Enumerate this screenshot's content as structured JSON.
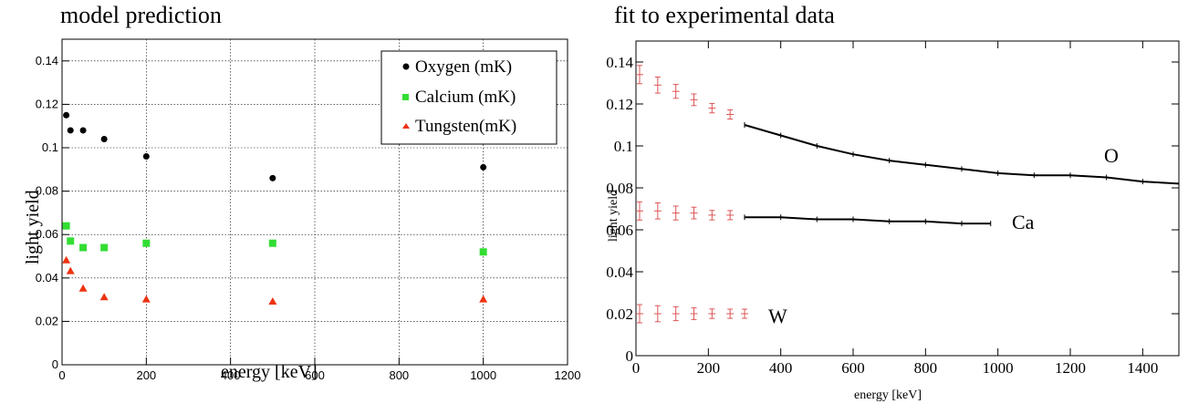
{
  "titles": {
    "left": "model prediction",
    "right": "fit to experimental data"
  },
  "chart_data": [
    {
      "type": "scatter",
      "title": "model prediction",
      "xlabel": "energy [keV]",
      "ylabel": "light yield",
      "xlim": [
        0,
        1200
      ],
      "ylim": [
        0,
        0.15
      ],
      "xticks": [
        0,
        200,
        400,
        600,
        800,
        1000,
        1200
      ],
      "yticks": [
        0,
        0.02,
        0.04,
        0.06,
        0.08,
        0.1,
        0.12,
        0.14
      ],
      "grid": true,
      "legend_position": "top-right",
      "series": [
        {
          "name": "Oxygen (mK)",
          "marker": "circle",
          "color": "#000000",
          "x": [
            10,
            20,
            50,
            100,
            200,
            500,
            1000
          ],
          "y": [
            0.115,
            0.108,
            0.108,
            0.104,
            0.096,
            0.086,
            0.091
          ]
        },
        {
          "name": "Calcium (mK)",
          "marker": "square",
          "color": "#33dd33",
          "x": [
            10,
            20,
            50,
            100,
            200,
            500,
            1000
          ],
          "y": [
            0.064,
            0.057,
            0.054,
            0.054,
            0.056,
            0.056,
            0.052
          ]
        },
        {
          "name": "Tungsten(mK)",
          "marker": "triangle",
          "color": "#ee3311",
          "x": [
            10,
            20,
            50,
            100,
            200,
            500,
            1000
          ],
          "y": [
            0.048,
            0.043,
            0.035,
            0.031,
            0.03,
            0.029,
            0.03
          ]
        }
      ]
    },
    {
      "type": "line",
      "title": "fit to experimental data",
      "xlabel": "energy [keV]",
      "ylabel": "light yield",
      "xlim": [
        0,
        1500
      ],
      "ylim": [
        0,
        0.15
      ],
      "xticks": [
        0,
        200,
        400,
        600,
        800,
        1000,
        1200,
        1400
      ],
      "yticks": [
        0,
        0.02,
        0.04,
        0.06,
        0.08,
        0.1,
        0.12,
        0.14
      ],
      "grid": false,
      "series": [
        {
          "name": "O",
          "style": "fit-band",
          "color": "#dd5555",
          "x": [
            0,
            50,
            100,
            150,
            200,
            250
          ],
          "y": [
            0.134,
            0.129,
            0.126,
            0.122,
            0.118,
            0.115
          ]
        },
        {
          "name": "O",
          "style": "data-line",
          "color": "#000000",
          "x": [
            300,
            400,
            500,
            600,
            700,
            800,
            900,
            1000,
            1100,
            1200,
            1300,
            1400,
            1500
          ],
          "y": [
            0.11,
            0.105,
            0.1,
            0.096,
            0.093,
            0.091,
            0.089,
            0.087,
            0.086,
            0.086,
            0.085,
            0.083,
            0.082
          ]
        },
        {
          "name": "Ca",
          "style": "fit-band",
          "color": "#dd5555",
          "x": [
            0,
            50,
            100,
            150,
            200,
            250
          ],
          "y": [
            0.069,
            0.069,
            0.068,
            0.068,
            0.067,
            0.067
          ]
        },
        {
          "name": "Ca",
          "style": "data-line",
          "color": "#000000",
          "x": [
            300,
            400,
            500,
            600,
            700,
            800,
            900,
            980
          ],
          "y": [
            0.066,
            0.066,
            0.065,
            0.065,
            0.064,
            0.064,
            0.063,
            0.063
          ]
        },
        {
          "name": "W",
          "style": "fit-band",
          "color": "#dd5555",
          "x": [
            0,
            50,
            100,
            150,
            200,
            250,
            290
          ],
          "y": [
            0.02,
            0.02,
            0.02,
            0.02,
            0.02,
            0.02,
            0.02
          ]
        }
      ],
      "annotations": [
        "O",
        "Ca",
        "W"
      ]
    }
  ]
}
